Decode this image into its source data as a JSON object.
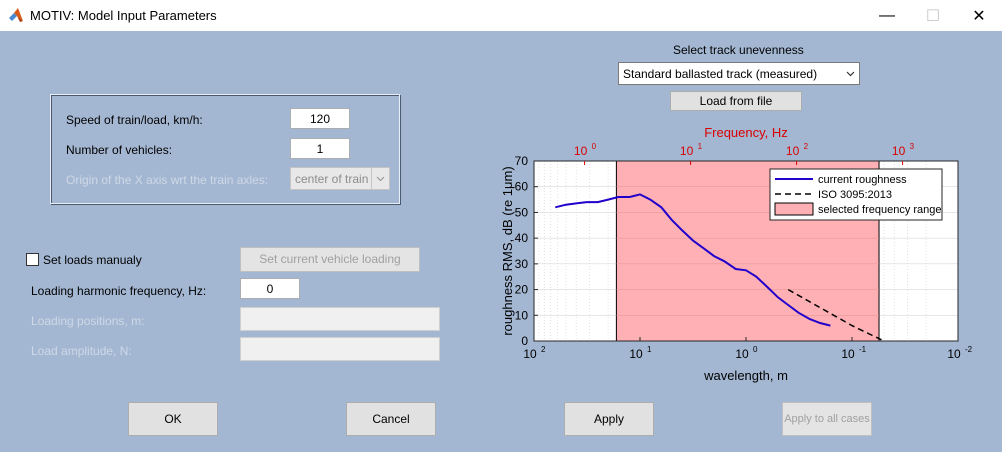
{
  "window": {
    "title": "MOTIV: Model Input Parameters",
    "minimize": "—",
    "maximize": "☐",
    "close": "✕"
  },
  "train_panel": {
    "speed_label": "Speed of train/load, km/h:",
    "speed_value": "120",
    "vehicles_label": "Number of vehicles:",
    "vehicles_value": "1",
    "origin_label": "Origin of the X axis wrt the train axles:",
    "origin_value": "center of train"
  },
  "loads": {
    "set_manually_label": "Set loads manualy",
    "set_manually_checked": false,
    "set_vehicle_loading_button": "Set current vehicle loading",
    "harmonic_freq_label": "Loading harmonic frequency, Hz:",
    "harmonic_freq_value": "0",
    "positions_label": "Loading positions, m:",
    "positions_value": "",
    "amplitude_label": "Load amplitude, N:",
    "amplitude_value": ""
  },
  "track": {
    "select_label": "Select track unevenness",
    "select_value": "Standard ballasted track (measured)",
    "load_button": "Load from file"
  },
  "buttons": {
    "ok": "OK",
    "cancel": "Cancel",
    "apply": "Apply",
    "apply_all": "Apply to all cases"
  },
  "colors": {
    "window_bg": "#a4b7d2",
    "freq_axis": "#d90000",
    "range_fill": "#ffb0b4",
    "roughness_line": "#2200cc"
  },
  "chart_data": {
    "type": "line",
    "title": "Frequency, Hz",
    "xlabel": "wavelength, m",
    "ylabel": "roughness RMS, dB (re 1μm)",
    "x_scale": "log",
    "x_reversed": true,
    "xlim": [
      100,
      0.01
    ],
    "ylim": [
      0,
      70
    ],
    "x_ticks": [
      {
        "base": "10",
        "exp": "2"
      },
      {
        "base": "10",
        "exp": "1"
      },
      {
        "base": "10",
        "exp": "0"
      },
      {
        "base": "10",
        "exp": "-1"
      },
      {
        "base": "10",
        "exp": "-2"
      }
    ],
    "y_ticks": [
      "0",
      "10",
      "20",
      "30",
      "40",
      "50",
      "60",
      "70"
    ],
    "top_axis_ticks": [
      {
        "base": "10",
        "exp": "0"
      },
      {
        "base": "10",
        "exp": "1"
      },
      {
        "base": "10",
        "exp": "2"
      },
      {
        "base": "10",
        "exp": "3"
      }
    ],
    "grid": true,
    "legend_position": "top-right",
    "legend": [
      "current roughness",
      "ISO 3095:2013",
      "selected frequency range"
    ],
    "selected_range_wavelength": [
      16.7,
      0.0556
    ],
    "series": [
      {
        "name": "current roughness",
        "x": [
          63,
          50,
          40,
          32,
          25,
          20,
          16,
          12.5,
          10,
          8,
          6.3,
          5,
          4,
          3.15,
          2.5,
          2,
          1.6,
          1.25,
          1,
          0.8,
          0.63,
          0.5,
          0.4,
          0.32,
          0.25,
          0.2,
          0.16
        ],
        "y": [
          52,
          53,
          53.5,
          54,
          54,
          55,
          56,
          56,
          57,
          55,
          52,
          47,
          43,
          39,
          36,
          33,
          31,
          28,
          27.5,
          25,
          21,
          17,
          14,
          11,
          8.5,
          7,
          6
        ]
      },
      {
        "name": "ISO 3095:2013",
        "x": [
          0.4,
          0.1,
          0.05
        ],
        "y": [
          20,
          6,
          0
        ]
      }
    ]
  }
}
